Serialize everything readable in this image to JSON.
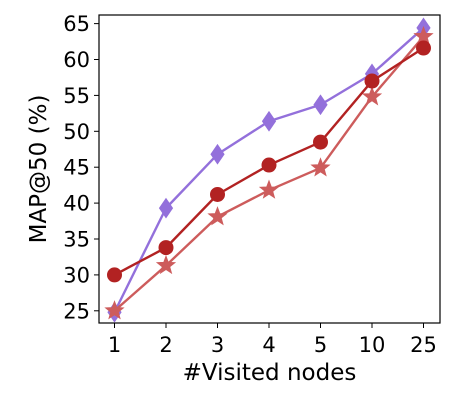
{
  "chart_data": {
    "type": "line",
    "title": "",
    "xlabel": "#Visited nodes",
    "ylabel": "MAP@50 (%)",
    "categories": [
      "1",
      "2",
      "3",
      "4",
      "5",
      "10",
      "25"
    ],
    "ylim": [
      23.3,
      66.2
    ],
    "yticks": [
      25,
      30,
      35,
      40,
      45,
      50,
      55,
      60,
      65
    ],
    "grid": false,
    "legend": "none",
    "series": [
      {
        "marker": "diamond",
        "color": "#9370DB",
        "values": [
          24.8,
          39.3,
          46.8,
          51.4,
          53.7,
          58.0,
          64.4
        ]
      },
      {
        "marker": "circle",
        "color": "#B22222",
        "values": [
          30.0,
          33.8,
          41.2,
          45.3,
          48.5,
          57.0,
          61.6
        ]
      },
      {
        "marker": "star",
        "color": "#CD5C5C",
        "values": [
          25.0,
          31.3,
          38.1,
          41.8,
          44.9,
          54.8,
          63.2
        ]
      }
    ]
  }
}
